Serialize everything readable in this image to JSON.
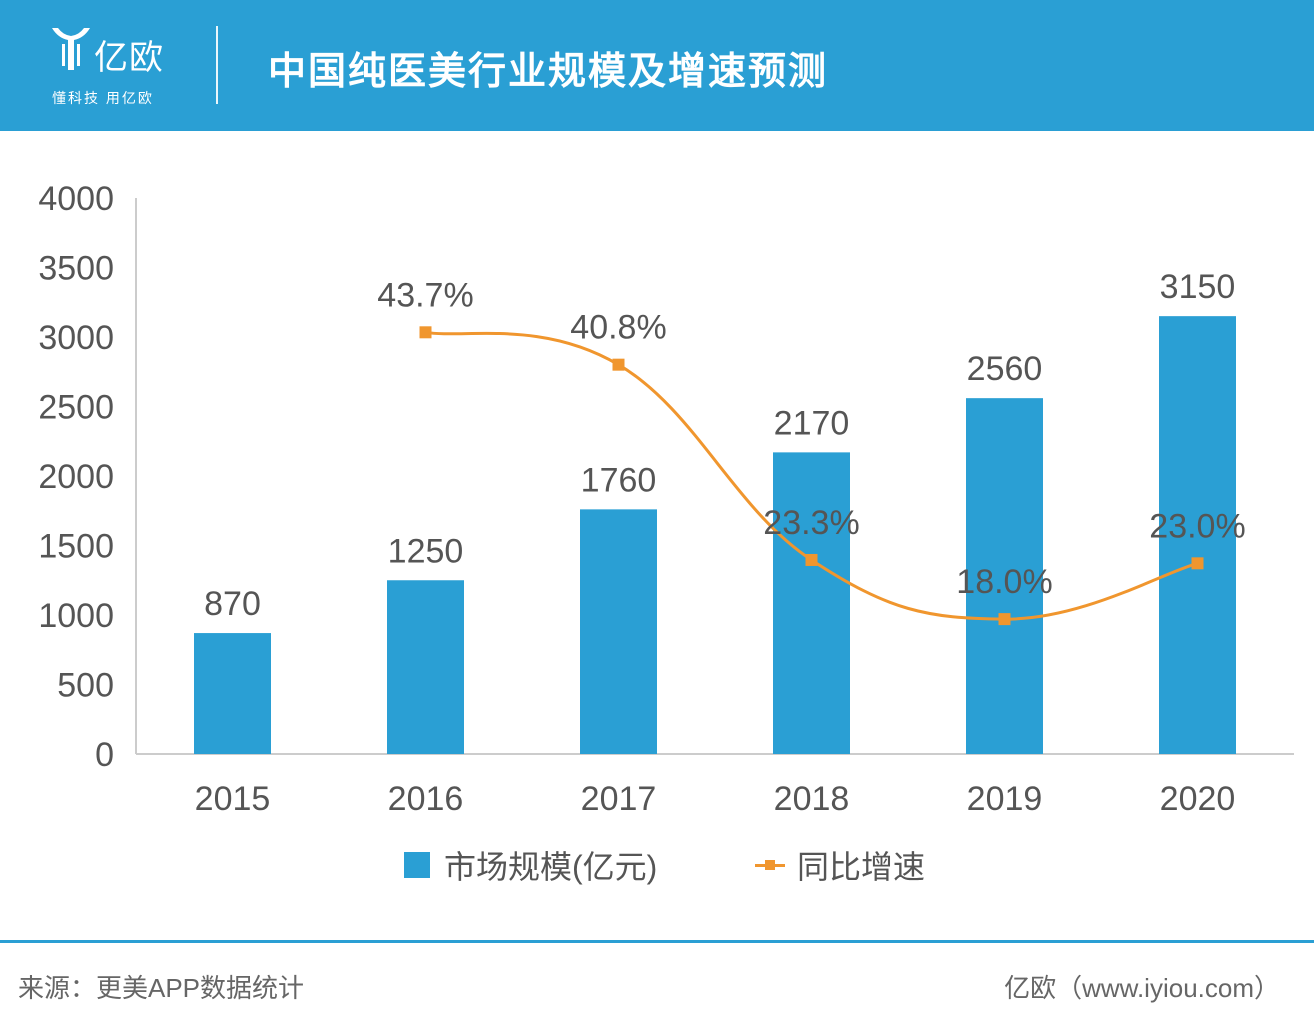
{
  "header": {
    "logo_text": "亿欧",
    "logo_tagline": "懂科技 用亿欧",
    "title": "中国纯医美行业规模及增速预测"
  },
  "colors": {
    "header_bg": "#2a9fd4",
    "bar": "#2a9fd4",
    "line": "#f0962e",
    "axis": "#cccccc",
    "text": "#555555"
  },
  "chart_data": {
    "type": "bar",
    "title": "中国纯医美行业规模及增速预测",
    "categories": [
      "2015",
      "2016",
      "2017",
      "2018",
      "2019",
      "2020"
    ],
    "ylim": [
      0,
      4000
    ],
    "yticks": [
      "0",
      "500",
      "1000",
      "1500",
      "2000",
      "2500",
      "3000",
      "3500",
      "4000"
    ],
    "series": [
      {
        "name": "市场规模(亿元)",
        "kind": "bar",
        "values": [
          870,
          1250,
          1760,
          2170,
          2560,
          3150
        ],
        "labels": [
          "870",
          "1250",
          "1760",
          "2170",
          "2560",
          "3150"
        ]
      },
      {
        "name": "同比增速",
        "kind": "line",
        "values": [
          null,
          43.7,
          40.8,
          23.3,
          18.0,
          23.0
        ],
        "labels": [
          "",
          "43.7%",
          "40.8%",
          "23.3%",
          "18.0%",
          "23.0%"
        ]
      }
    ],
    "legend_position": "bottom"
  },
  "footer": {
    "source": "来源：更美APP数据统计",
    "brand": "亿欧（www.iyiou.com）"
  }
}
